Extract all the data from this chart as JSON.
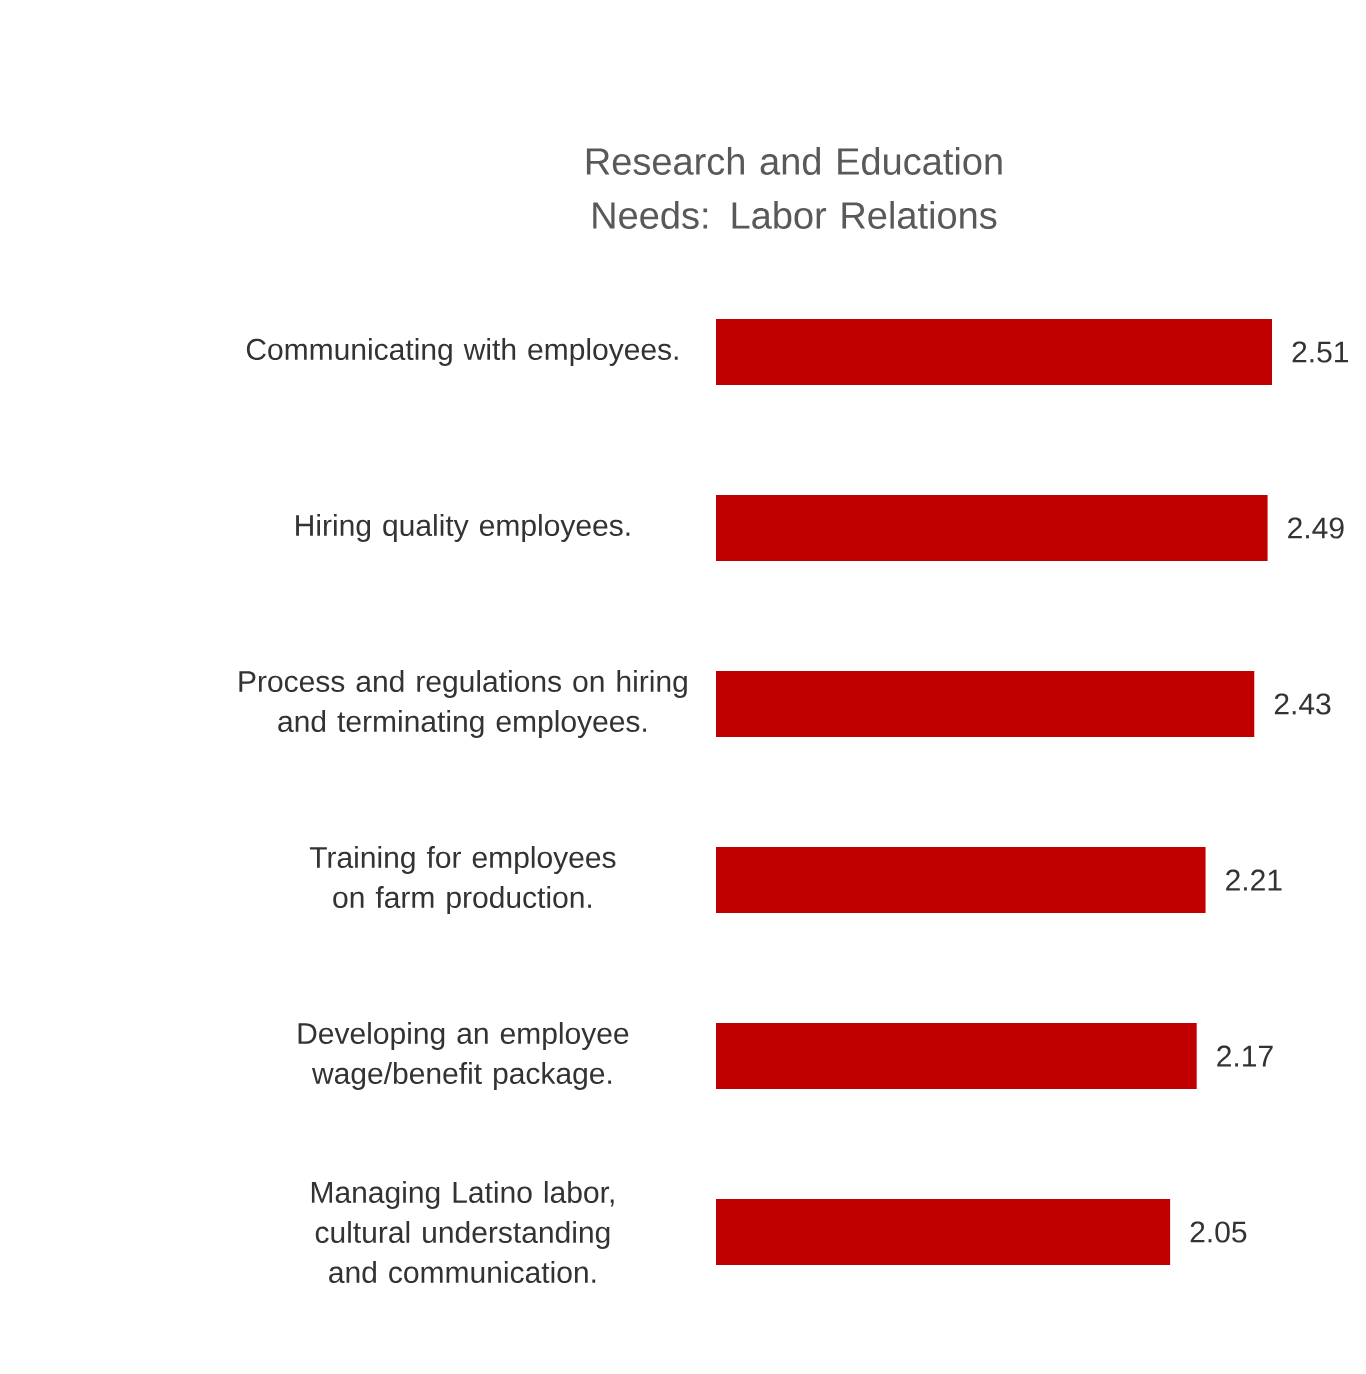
{
  "chart_data": {
    "type": "bar",
    "orientation": "horizontal",
    "title": "Research and Education Needs: Labor Relations",
    "categories": [
      "Communicating with employees.",
      "Hiring quality employees.",
      "Process and regulations on hiring and terminating employees.",
      "Training for employees on farm production.",
      "Developing  an employee wage/benefit package.",
      "Managing Latino labor, cultural understanding  and communication."
    ],
    "values": [
      2.51,
      2.49,
      2.43,
      2.21,
      2.17,
      2.05
    ],
    "color": "#c00000",
    "data_labels": true,
    "tick_labels": "y",
    "grid": false
  }
}
